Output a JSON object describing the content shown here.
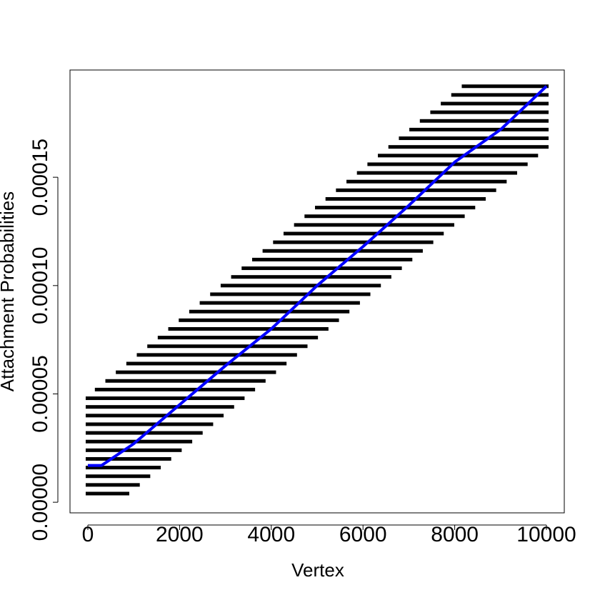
{
  "chart_data": {
    "type": "scatter",
    "x_label": "Vertex",
    "y_label": "Attachment Probabilities",
    "xlim": [
      -389,
      10389
    ],
    "ylim": [
      -4.9e-06,
      0.0001995
    ],
    "xticks": [
      0,
      2000,
      4000,
      6000,
      8000,
      10000
    ],
    "yticks": [
      {
        "value": 0,
        "label": "0.00000"
      },
      {
        "value": 5e-05,
        "label": "0.00005"
      },
      {
        "value": 0.0001,
        "label": "0.00010"
      },
      {
        "value": 0.00015,
        "label": "0.00015"
      }
    ],
    "point_color": "#000000",
    "bands": [
      {
        "y": 4e-06,
        "x": [
          0,
          857
        ]
      },
      {
        "y": 8e-06,
        "x": [
          0,
          1086
        ]
      },
      {
        "y": 1.2e-05,
        "x": [
          0,
          1314
        ]
      },
      {
        "y": 1.6e-05,
        "x": [
          0,
          1543
        ]
      },
      {
        "y": 2e-05,
        "x": [
          0,
          1771
        ]
      },
      {
        "y": 2.4e-05,
        "x": [
          0,
          2000
        ]
      },
      {
        "y": 2.8e-05,
        "x": [
          0,
          2229
        ]
      },
      {
        "y": 3.2e-05,
        "x": [
          0,
          2457
        ]
      },
      {
        "y": 3.6e-05,
        "x": [
          0,
          2686
        ]
      },
      {
        "y": 4e-05,
        "x": [
          0,
          2914
        ]
      },
      {
        "y": 4.4e-05,
        "x": [
          0,
          3143
        ]
      },
      {
        "y": 4.8e-05,
        "x": [
          0,
          3371
        ]
      },
      {
        "y": 5.2e-05,
        "x": [
          200,
          3600
        ]
      },
      {
        "y": 5.6e-05,
        "x": [
          429,
          3829
        ]
      },
      {
        "y": 6e-05,
        "x": [
          657,
          4057
        ]
      },
      {
        "y": 6.4e-05,
        "x": [
          886,
          4286
        ]
      },
      {
        "y": 6.8e-05,
        "x": [
          1114,
          4514
        ]
      },
      {
        "y": 7.2e-05,
        "x": [
          1343,
          4743
        ]
      },
      {
        "y": 7.6e-05,
        "x": [
          1571,
          4971
        ]
      },
      {
        "y": 8e-05,
        "x": [
          1800,
          5200
        ]
      },
      {
        "y": 8.4e-05,
        "x": [
          2029,
          5429
        ]
      },
      {
        "y": 8.8e-05,
        "x": [
          2257,
          5657
        ]
      },
      {
        "y": 9.2e-05,
        "x": [
          2486,
          5886
        ]
      },
      {
        "y": 9.6e-05,
        "x": [
          2714,
          6114
        ]
      },
      {
        "y": 0.0001,
        "x": [
          2943,
          6343
        ]
      },
      {
        "y": 0.000104,
        "x": [
          3171,
          6571
        ]
      },
      {
        "y": 0.000108,
        "x": [
          3400,
          6800
        ]
      },
      {
        "y": 0.000112,
        "x": [
          3629,
          7029
        ]
      },
      {
        "y": 0.000116,
        "x": [
          3857,
          7257
        ]
      },
      {
        "y": 0.00012,
        "x": [
          4086,
          7486
        ]
      },
      {
        "y": 0.000124,
        "x": [
          4314,
          7714
        ]
      },
      {
        "y": 0.000128,
        "x": [
          4543,
          7943
        ]
      },
      {
        "y": 0.000132,
        "x": [
          4771,
          8171
        ]
      },
      {
        "y": 0.000136,
        "x": [
          5000,
          8400
        ]
      },
      {
        "y": 0.00014,
        "x": [
          5229,
          8629
        ]
      },
      {
        "y": 0.000144,
        "x": [
          5457,
          8857
        ]
      },
      {
        "y": 0.000148,
        "x": [
          5686,
          9086
        ]
      },
      {
        "y": 0.000152,
        "x": [
          5914,
          9314
        ]
      },
      {
        "y": 0.000156,
        "x": [
          6143,
          9543
        ]
      },
      {
        "y": 0.00016,
        "x": [
          6371,
          9771
        ]
      },
      {
        "y": 0.000164,
        "x": [
          6600,
          10000
        ]
      },
      {
        "y": 0.000168,
        "x": [
          6829,
          10000
        ]
      },
      {
        "y": 0.000172,
        "x": [
          7057,
          10000
        ]
      },
      {
        "y": 0.000176,
        "x": [
          7286,
          10000
        ]
      },
      {
        "y": 0.00018,
        "x": [
          7514,
          10000
        ]
      },
      {
        "y": 0.000184,
        "x": [
          7743,
          10000
        ]
      },
      {
        "y": 0.000188,
        "x": [
          7971,
          10000
        ]
      },
      {
        "y": 0.000192,
        "x": [
          8200,
          10000
        ]
      }
    ],
    "trend": {
      "color": "#0000ff",
      "x": [
        0,
        300,
        1000,
        2000,
        3000,
        4000,
        5000,
        6000,
        7000,
        8000,
        9000,
        10000
      ],
      "values": [
        1.7e-05,
        1.7e-05,
        2.7e-05,
        4.5e-05,
        6.3e-05,
        8e-05,
        0.0001,
        0.000118,
        0.000137,
        0.000157,
        0.000172,
        0.000192
      ]
    }
  }
}
